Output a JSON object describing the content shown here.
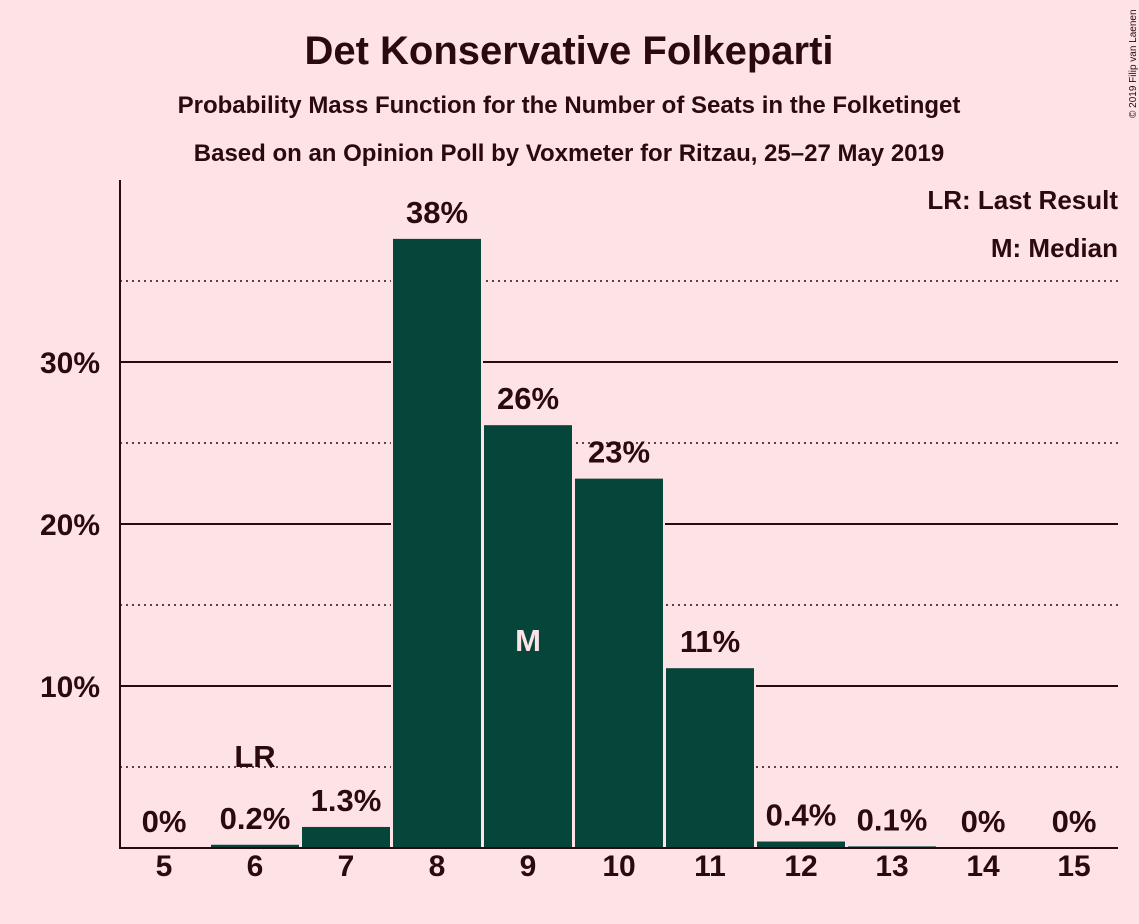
{
  "title": "Det Konservative Folkeparti",
  "subtitle1": "Probability Mass Function for the Number of Seats in the Folketinget",
  "subtitle2": "Based on an Opinion Poll by Voxmeter for Ritzau, 25–27 May 2019",
  "copyright": "© 2019 Filip van Laenen",
  "legend": {
    "last_result": "LR: Last Result",
    "median": "M: Median"
  },
  "colors": {
    "background": "#fde2e6",
    "bar": "#06453a",
    "text": "#2b0a0f",
    "median_label": "#fde2e6"
  },
  "chart_data": {
    "type": "bar",
    "categories": [
      "5",
      "6",
      "7",
      "8",
      "9",
      "10",
      "11",
      "12",
      "13",
      "14",
      "15"
    ],
    "values": [
      0,
      0.2,
      1.3,
      37.6,
      26.1,
      22.8,
      11.1,
      0.4,
      0.1,
      0,
      0
    ],
    "value_labels": [
      "0%",
      "0.2%",
      "1.3%",
      "38%",
      "26%",
      "23%",
      "11%",
      "0.4%",
      "0.1%",
      "0%",
      "0%"
    ],
    "y_ticks": [
      10,
      20,
      30
    ],
    "y_tick_labels": [
      "10%",
      "20%",
      "30%"
    ],
    "minor_gridlines": [
      5,
      15,
      25,
      35
    ],
    "ylim": [
      0,
      41
    ],
    "last_result": {
      "category": "6",
      "label": "LR"
    },
    "median": {
      "category": "9",
      "label": "M"
    },
    "legend_position": "top-right"
  }
}
